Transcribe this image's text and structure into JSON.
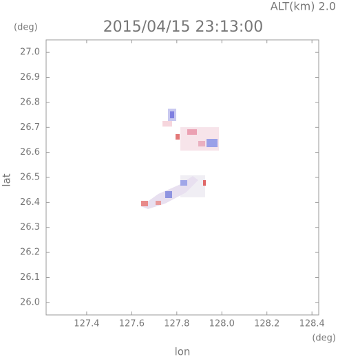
{
  "chart_data": {
    "type": "radar-field",
    "title": "2015/04/15 23:13:00",
    "altitude_label": "ALT(km)  2.0",
    "y_unit": "(deg)",
    "x_unit": "(deg)",
    "xlabel": "lon",
    "ylabel": "lat",
    "xlim": [
      127.22,
      128.43
    ],
    "ylim": [
      25.95,
      27.05
    ],
    "xticks": [
      127.4,
      127.6,
      127.8,
      {
        "value": 128,
        "label": "128.0"
      },
      128.2,
      128.4
    ],
    "yticks": [
      {
        "value": 26,
        "label": "26.0"
      },
      26.1,
      26.2,
      26.3,
      26.4,
      26.5,
      26.6,
      26.7,
      26.8,
      26.9,
      {
        "value": 27,
        "label": "27.0"
      }
    ]
  }
}
